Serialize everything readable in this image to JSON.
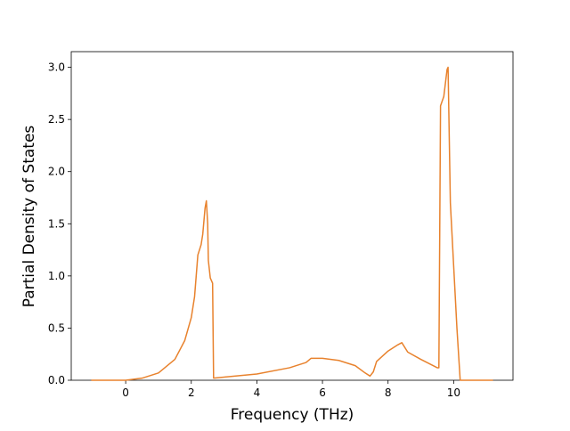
{
  "chart_data": {
    "type": "line",
    "x_label": "Frequency (THz)",
    "y_label": "Partial Density of States",
    "x": [
      -1.05,
      0,
      0.5,
      1,
      1.5,
      1.8,
      2.0,
      2.1,
      2.2,
      2.3,
      2.35,
      2.42,
      2.46,
      2.5,
      2.52,
      2.58,
      2.65,
      2.68,
      3,
      4,
      5,
      5.5,
      5.65,
      6,
      6.5,
      7,
      7.3,
      7.45,
      7.55,
      7.65,
      8,
      8.3,
      8.42,
      8.6,
      9,
      9.5,
      9.55,
      9.6,
      9.7,
      9.8,
      9.83,
      9.9,
      10,
      10.1,
      10.2,
      11.2
    ],
    "series": [
      {
        "color": "#e8822d",
        "values": [
          0,
          0,
          0.02,
          0.07,
          0.2,
          0.38,
          0.6,
          0.8,
          1.2,
          1.3,
          1.4,
          1.65,
          1.72,
          1.5,
          1.15,
          0.98,
          0.93,
          0.02,
          0.03,
          0.06,
          0.12,
          0.17,
          0.21,
          0.21,
          0.19,
          0.14,
          0.07,
          0.04,
          0.08,
          0.18,
          0.28,
          0.34,
          0.36,
          0.27,
          0.2,
          0.12,
          0.12,
          2.63,
          2.72,
          2.98,
          3.0,
          1.7,
          1.1,
          0.5,
          0,
          0
        ]
      }
    ],
    "xlim": [
      -1.66,
      11.81
    ],
    "ylim": [
      0,
      3.15
    ],
    "xticks": [
      0,
      2,
      4,
      6,
      8,
      10
    ],
    "yticks": [
      {
        "value": 0,
        "label": "0.0"
      },
      {
        "value": 0.5,
        "label": "0.5"
      },
      {
        "value": 1,
        "label": "1.0"
      },
      {
        "value": 1.5,
        "label": "1.5"
      },
      {
        "value": 2,
        "label": "2.0"
      },
      {
        "value": 2.5,
        "label": "2.5"
      },
      {
        "value": 3,
        "label": "3.0"
      }
    ],
    "grid": false
  }
}
